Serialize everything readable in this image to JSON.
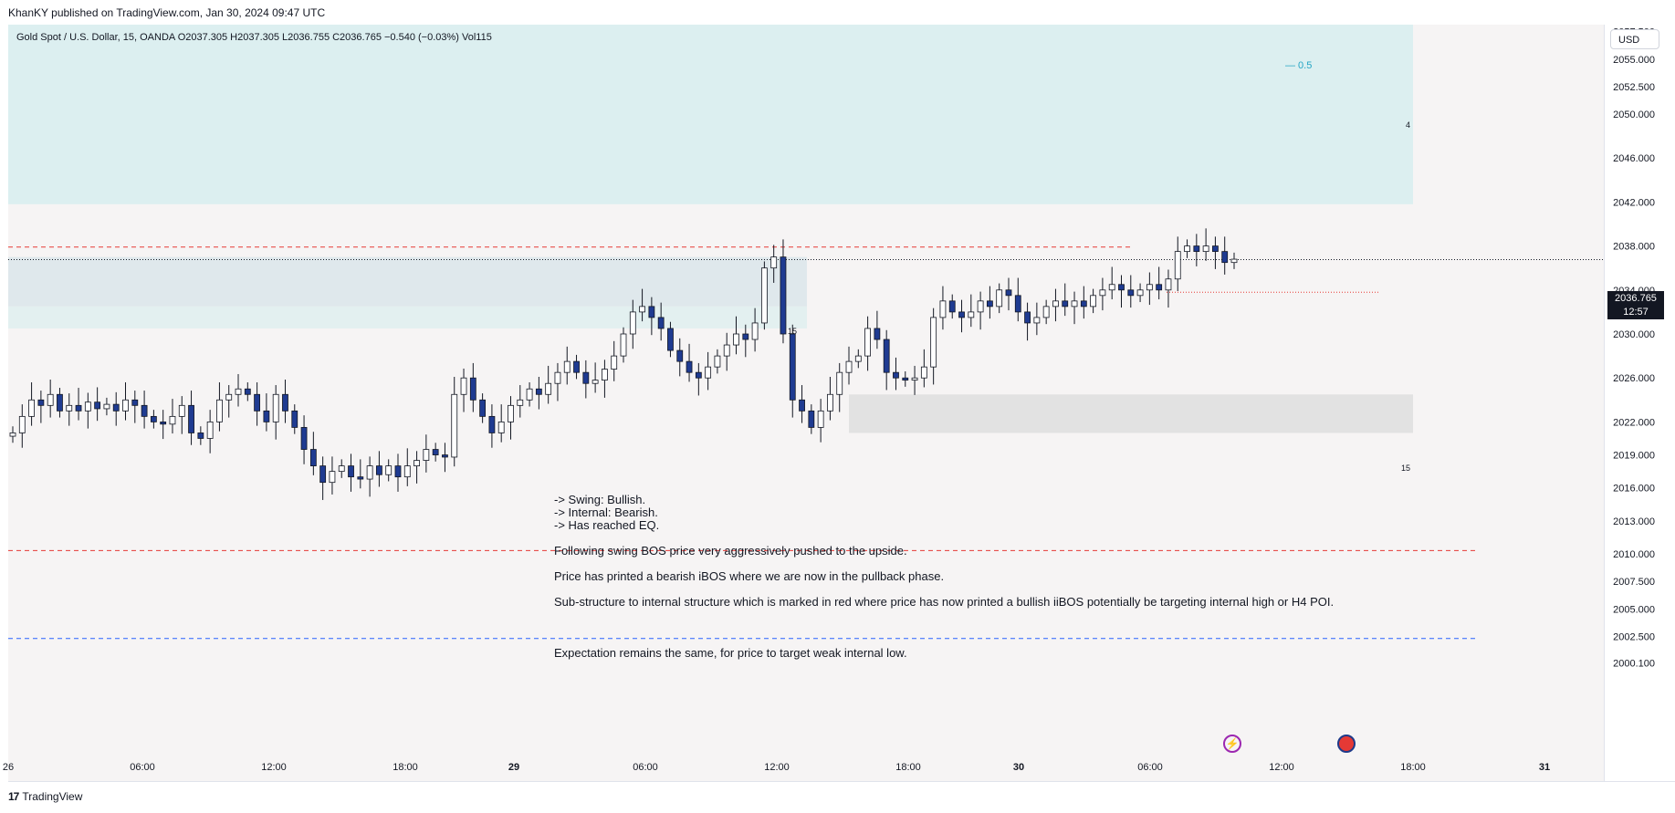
{
  "header": {
    "publisher_line": "KhanKY published on TradingView.com, Jan 30, 2024 09:47 UTC"
  },
  "symbol": {
    "legend_text": "Gold Spot / U.S. Dollar, 15, OANDA  O2037.305  H2037.305  L2036.755  C2036.765  −0.540 (−0.03%)  Vol115"
  },
  "currency_button": "USD",
  "last_price": {
    "value": "2036.765",
    "countdown": "12:57"
  },
  "notes": {
    "line1": "-> Swing: Bullish.",
    "line2": "-> Internal: Bearish.",
    "line3": "-> Has reached EQ.",
    "p1": "Following swing BOS price very aggressively pushed to the upside.",
    "p2": "Price has printed a bearish iBOS where we are now in the pullback phase.",
    "p3": "Sub-structure to internal structure which is marked in red where price has now printed a bullish iiBOS potentially be targeting internal high or H4 POI.",
    "p4": "Expectation remains the same, for price to target weak internal low."
  },
  "footer": {
    "brand": "TradingView"
  },
  "icons": [
    "lightning-icon",
    "us-flag-icon",
    "tradingview-logo-icon"
  ],
  "colors": {
    "bull_body": "#ffffff",
    "bear_body": "#1f3b91",
    "wick": "#131722",
    "zone_h4": "#dceff0",
    "zone_demand": "#e2e2e2",
    "dash_red": "#e53935",
    "dash_blue": "#2962ff",
    "fib_label": "#26a6c5"
  },
  "chart_data": {
    "type": "candlestick",
    "symbol": "Gold Spot / U.S. Dollar",
    "timeframe": "15",
    "y_ticks": [
      "2057.500",
      "2055.000",
      "2052.500",
      "2050.000",
      "2046.000",
      "2042.000",
      "2038.000",
      "2034.000",
      "2030.000",
      "2026.000",
      "2022.000",
      "2019.000",
      "2016.000",
      "2013.000",
      "2010.000",
      "2007.500",
      "2005.000",
      "2002.500",
      "2000.100"
    ],
    "x_ticks": [
      "26",
      "06:00",
      "12:00",
      "18:00",
      "29",
      "06:00",
      "12:00",
      "18:00",
      "30",
      "06:00",
      "12:00",
      "18:00",
      "31"
    ],
    "zone_labels": [
      "15",
      "4",
      "15"
    ],
    "fib_label": "0.5",
    "closes": [
      2021.0,
      2022.5,
      2024.0,
      2023.5,
      2024.5,
      2023.0,
      2023.5,
      2023.0,
      2023.8,
      2023.2,
      2023.6,
      2023.0,
      2024.0,
      2023.5,
      2022.5,
      2022.0,
      2021.8,
      2022.5,
      2023.5,
      2021.0,
      2020.5,
      2022.0,
      2024.0,
      2024.5,
      2025.0,
      2024.5,
      2023.0,
      2022.0,
      2024.5,
      2023.0,
      2021.5,
      2019.5,
      2018.0,
      2016.5,
      2017.5,
      2018.0,
      2017.0,
      2016.8,
      2018.0,
      2017.2,
      2018.0,
      2017.0,
      2018.0,
      2018.5,
      2019.5,
      2019.0,
      2018.8,
      2024.5,
      2026.0,
      2024.0,
      2022.5,
      2021.0,
      2022.0,
      2023.5,
      2024.0,
      2025.0,
      2024.5,
      2025.5,
      2026.5,
      2027.5,
      2026.5,
      2025.5,
      2025.8,
      2026.8,
      2028.0,
      2030.0,
      2032.0,
      2032.5,
      2031.5,
      2030.5,
      2028.5,
      2027.5,
      2026.5,
      2026.0,
      2027.0,
      2028.0,
      2029.0,
      2030.0,
      2029.5,
      2031.0,
      2036.0,
      2037.0,
      2030.0,
      2024.0,
      2023.0,
      2021.5,
      2023.0,
      2024.5,
      2026.5,
      2027.5,
      2028.0,
      2030.5,
      2029.5,
      2026.5,
      2026.0,
      2025.8,
      2026.0,
      2027.0,
      2031.5,
      2033.0,
      2032.0,
      2031.5,
      2032.0,
      2033.0,
      2032.5,
      2034.0,
      2033.5,
      2032.0,
      2031.0,
      2031.5,
      2032.5,
      2033.0,
      2032.5,
      2033.0,
      2032.5,
      2033.5,
      2034.0,
      2034.5,
      2034.0,
      2033.5,
      2034.0,
      2034.5,
      2034.0,
      2035.0,
      2037.5,
      2038.0,
      2037.5,
      2038.0,
      2037.5,
      2036.5,
      2036.8
    ],
    "series": [
      {
        "name": "H4 supply zone",
        "type": "zone",
        "y": [
          2041.8,
          2060.0
        ]
      },
      {
        "name": "15m zone",
        "type": "zone",
        "y": [
          2032.5,
          2037.0
        ]
      },
      {
        "name": "demand zone",
        "type": "zone",
        "y": [
          2021.0,
          2024.5
        ]
      }
    ],
    "levels": {
      "red_dashed_upper": 2037.9,
      "red_dashed_lower": 2010.3,
      "blue_dashed": 2002.3,
      "red_dotted": 2033.8
    },
    "ylim": [
      1999.0,
      2060.0
    ]
  }
}
